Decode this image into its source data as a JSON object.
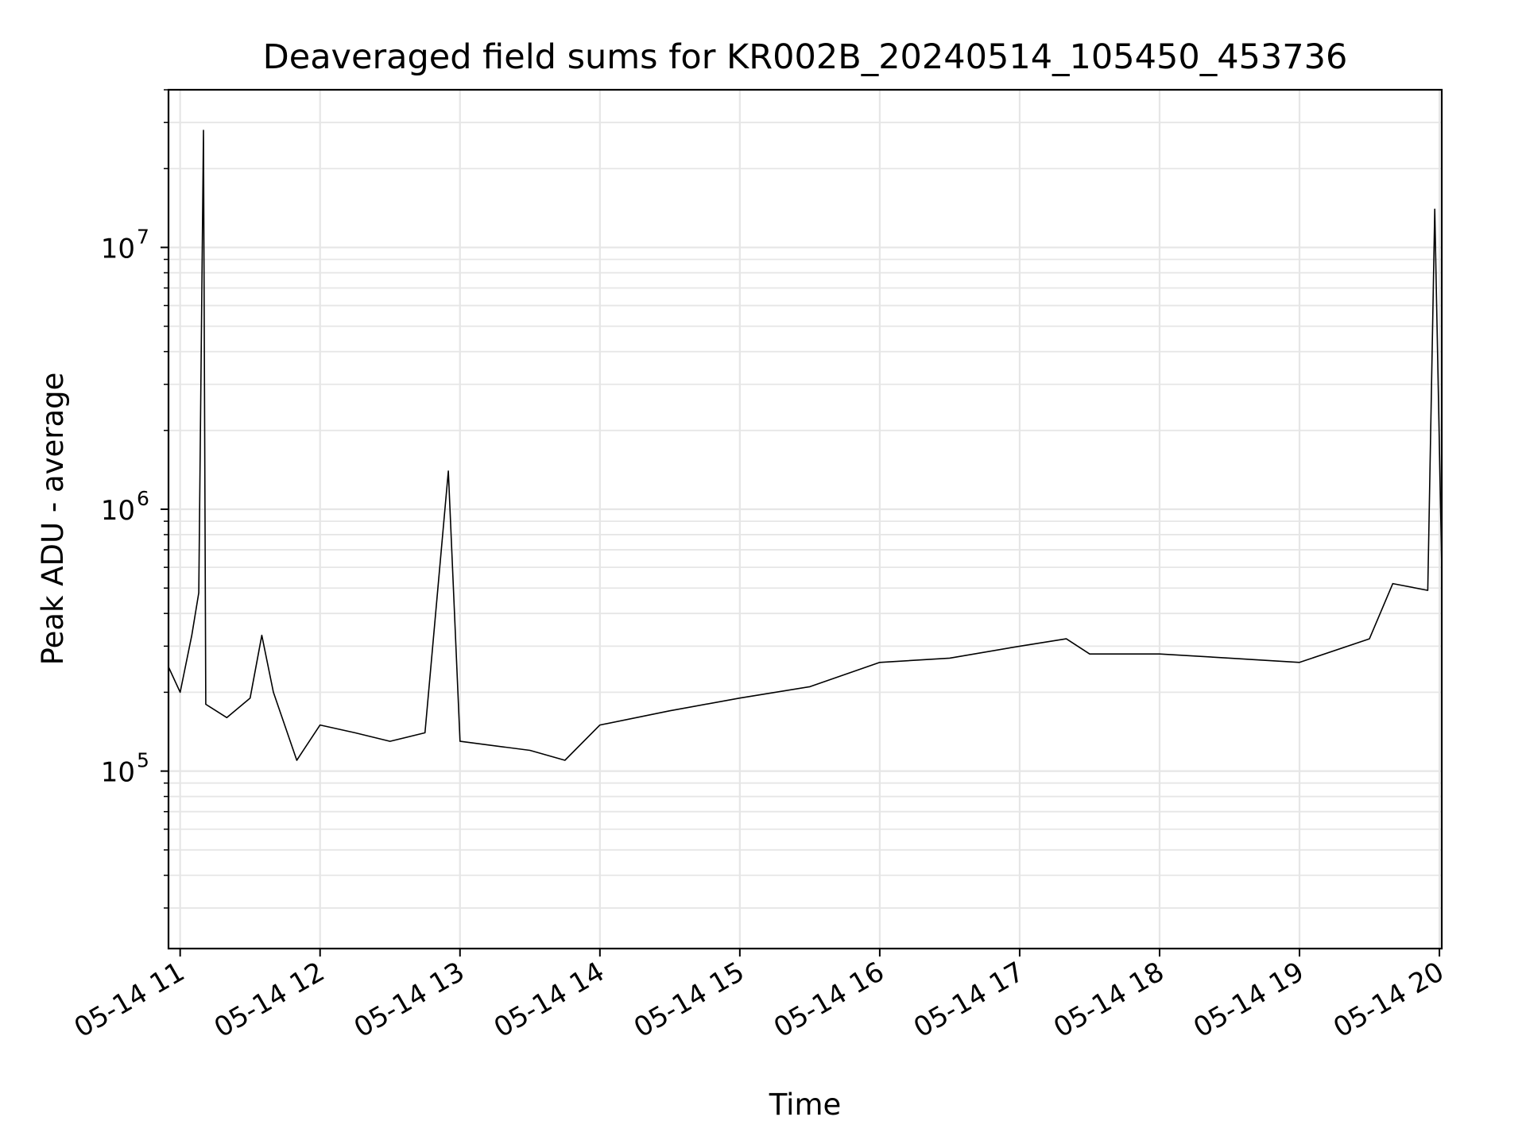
{
  "chart_data": {
    "type": "line",
    "title": "Deaveraged field sums for KR002B_20240514_105450_453736",
    "xlabel": "Time",
    "ylabel": "Peak ADU - average",
    "y_scale": "log",
    "ylim": [
      21000,
      40000000
    ],
    "xlim": [
      "2024-05-14 10:55",
      "2024-05-14 20:01"
    ],
    "x_ticks": [
      "05-14 11",
      "05-14 12",
      "05-14 13",
      "05-14 14",
      "05-14 15",
      "05-14 16",
      "05-14 17",
      "05-14 18",
      "05-14 19",
      "05-14 20"
    ],
    "y_ticks": [
      {
        "base": "10",
        "exp": "5",
        "value": 100000
      },
      {
        "base": "10",
        "exp": "6",
        "value": 1000000
      },
      {
        "base": "10",
        "exp": "7",
        "value": 10000000
      }
    ],
    "grid": "on (major and minor)",
    "series": [
      {
        "color": "#000000",
        "points": [
          [
            "2024-05-14 10:55",
            250000
          ],
          [
            "2024-05-14 11:00",
            200000
          ],
          [
            "2024-05-14 11:05",
            330000
          ],
          [
            "2024-05-14 11:08",
            480000
          ],
          [
            "2024-05-14 11:10",
            28000000
          ],
          [
            "2024-05-14 11:11",
            180000
          ],
          [
            "2024-05-14 11:20",
            160000
          ],
          [
            "2024-05-14 11:30",
            190000
          ],
          [
            "2024-05-14 11:35",
            330000
          ],
          [
            "2024-05-14 11:40",
            200000
          ],
          [
            "2024-05-14 11:50",
            110000
          ],
          [
            "2024-05-14 12:00",
            150000
          ],
          [
            "2024-05-14 12:15",
            140000
          ],
          [
            "2024-05-14 12:30",
            130000
          ],
          [
            "2024-05-14 12:45",
            140000
          ],
          [
            "2024-05-14 12:55",
            1400000
          ],
          [
            "2024-05-14 13:00",
            130000
          ],
          [
            "2024-05-14 13:30",
            120000
          ],
          [
            "2024-05-14 13:45",
            110000
          ],
          [
            "2024-05-14 14:00",
            150000
          ],
          [
            "2024-05-14 14:30",
            170000
          ],
          [
            "2024-05-14 15:00",
            190000
          ],
          [
            "2024-05-14 15:30",
            210000
          ],
          [
            "2024-05-14 16:00",
            260000
          ],
          [
            "2024-05-14 16:30",
            270000
          ],
          [
            "2024-05-14 17:00",
            300000
          ],
          [
            "2024-05-14 17:20",
            320000
          ],
          [
            "2024-05-14 17:30",
            280000
          ],
          [
            "2024-05-14 18:00",
            280000
          ],
          [
            "2024-05-14 18:30",
            270000
          ],
          [
            "2024-05-14 19:00",
            260000
          ],
          [
            "2024-05-14 19:30",
            320000
          ],
          [
            "2024-05-14 19:40",
            520000
          ],
          [
            "2024-05-14 19:55",
            490000
          ],
          [
            "2024-05-14 19:58",
            14000000
          ],
          [
            "2024-05-14 20:01",
            600000
          ]
        ]
      }
    ]
  }
}
